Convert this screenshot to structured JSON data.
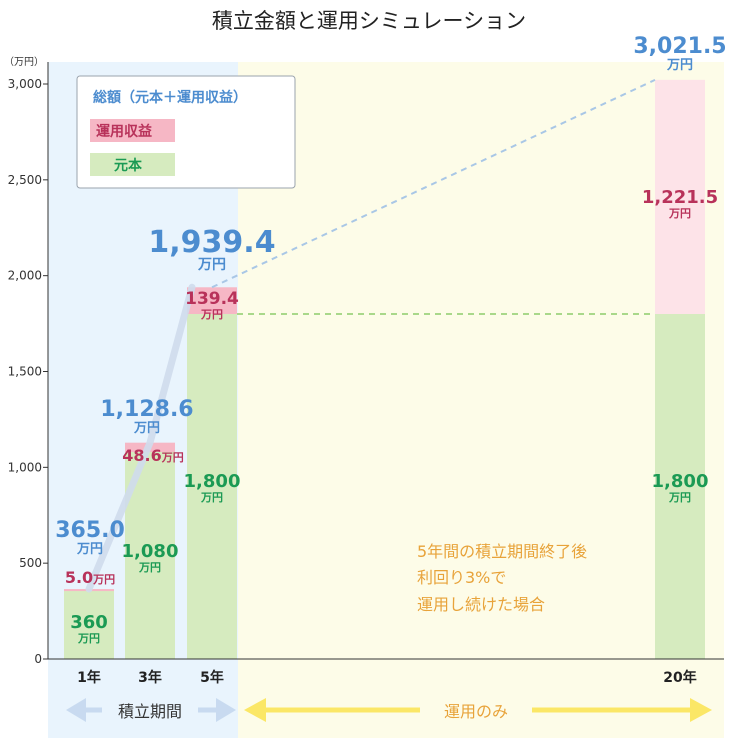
{
  "chart_data": {
    "type": "bar",
    "title": "積立金額と運用シミュレーション",
    "unit": "（万円）",
    "ylim": [
      0,
      3000
    ],
    "yticks": [
      0,
      500,
      1000,
      1500,
      2000,
      2500,
      3000
    ],
    "ytick_labels": [
      "0",
      "500",
      "1,000",
      "1,500",
      "2,000",
      "2,500",
      "3,000"
    ],
    "categories": [
      "1年",
      "3年",
      "5年",
      "20年"
    ],
    "series": [
      {
        "name": "元本",
        "values": [
          360,
          1080,
          1800,
          1800
        ],
        "labels": [
          "360",
          "1,080",
          "1,800",
          "1,800"
        ],
        "color": "#d6ebbf",
        "label_color": "#1b9a54"
      },
      {
        "name": "運用収益",
        "values": [
          5.0,
          48.6,
          139.4,
          1221.5
        ],
        "labels": [
          "5.0",
          "48.6",
          "139.4",
          "1,221.5"
        ],
        "color": "#f6b7c5",
        "label_color": "#b8325a"
      }
    ],
    "totals": [
      365.0,
      1128.6,
      1939.4,
      3021.5
    ],
    "total_labels": [
      "365.0",
      "1,128.6",
      "1,939.4",
      "3,021.5"
    ],
    "value_unit": "万円",
    "legend": [
      "総額（元本＋運用収益）",
      "運用収益",
      "元本"
    ],
    "legend_position": "top-left",
    "periods": [
      {
        "label": "積立期間",
        "color": "#e9f4fd",
        "arrow_color": "#c8daf0"
      },
      {
        "label": "運用のみ",
        "color": "#fdfce8",
        "arrow_color": "#fbe766"
      }
    ],
    "annotation": [
      "5年間の積立期間終了後",
      "利回り3%で",
      "運用し続けた場合"
    ],
    "colors": {
      "total": "#4c8ccf",
      "annotation": "#e8a33a"
    }
  }
}
